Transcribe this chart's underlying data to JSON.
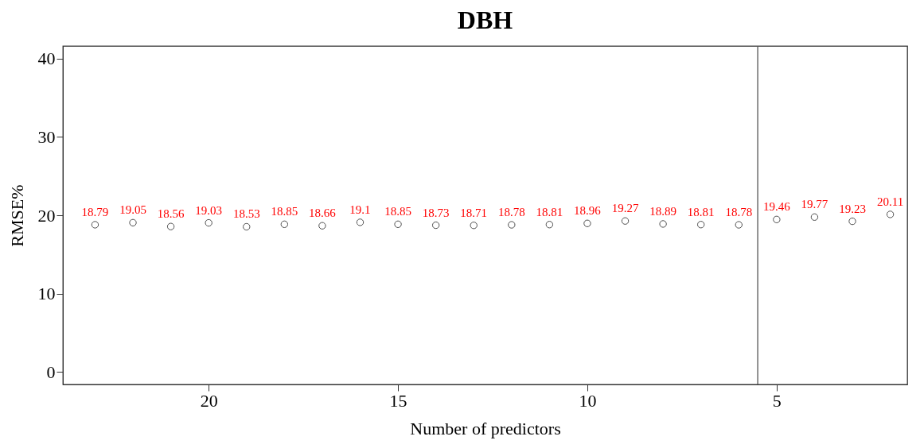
{
  "chart_data": {
    "type": "scatter",
    "title": "DBH",
    "xlabel": "Number of predictors",
    "ylabel": "RMSE%",
    "x": [
      23,
      22,
      21,
      20,
      19,
      18,
      17,
      16,
      15,
      14,
      13,
      12,
      11,
      10,
      9,
      8,
      7,
      6,
      5,
      4,
      3,
      2
    ],
    "series": [
      {
        "color": "#000000",
        "values": [
          18.79,
          19.05,
          18.56,
          19.03,
          18.53,
          18.85,
          18.66,
          19.1,
          18.85,
          18.73,
          18.71,
          18.78,
          18.81,
          18.96,
          19.27,
          18.89,
          18.81,
          18.78,
          19.46,
          19.77,
          19.23,
          20.11
        ]
      }
    ],
    "data_labels": true,
    "marker": "circle",
    "grid": false,
    "xlim": [
      23.85,
      1.55
    ],
    "xticks": [
      20,
      15,
      10,
      5
    ],
    "ylim": [
      -1.6,
      41.6
    ],
    "yticks": [
      0,
      10,
      20,
      30,
      40
    ],
    "ref_lines": [
      {
        "axis": "x",
        "value": 5.5,
        "color": "#555555"
      }
    ]
  }
}
